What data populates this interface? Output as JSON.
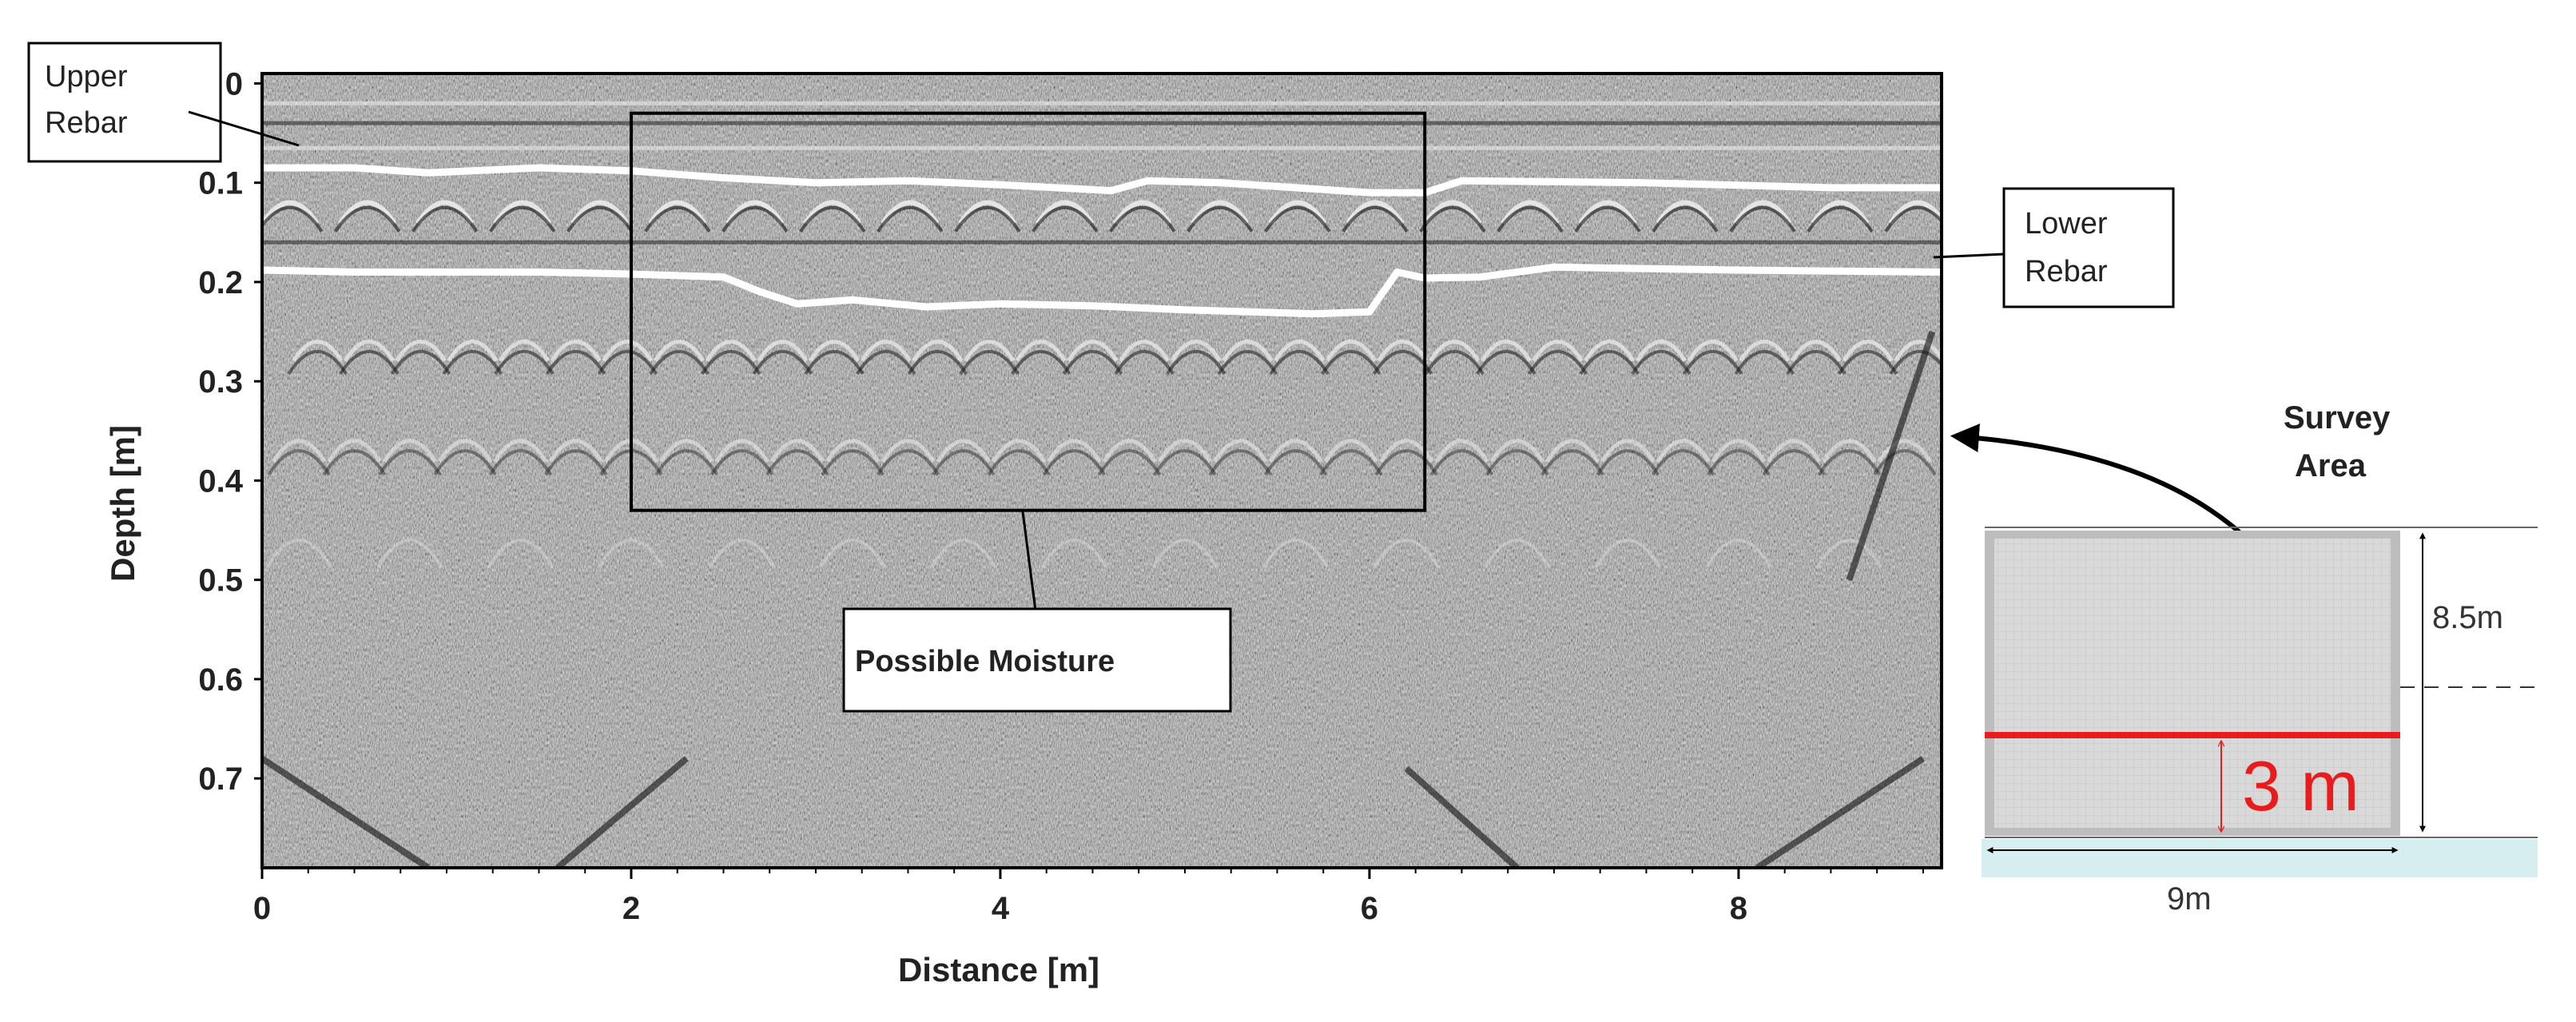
{
  "chart_data": {
    "type": "heatmap",
    "title": "",
    "xlabel": "Distance [m]",
    "ylabel": "Depth [m]",
    "xlim": [
      0,
      9.1
    ],
    "ylim": [
      0.79,
      -0.01
    ],
    "x_ticks": [
      0,
      2,
      4,
      6,
      8
    ],
    "x_tick_labels": [
      "0",
      "2",
      "4",
      "6",
      "8"
    ],
    "y_ticks": [
      0,
      0.1,
      0.2,
      0.3,
      0.4,
      0.5,
      0.6,
      0.7
    ],
    "y_tick_labels": [
      "0",
      "0.1",
      "0.2",
      "0.3",
      "0.4",
      "0.5",
      "0.6",
      "0.7"
    ],
    "background": "grayscale GPR radargram",
    "series": [
      {
        "name": "Upper Rebar",
        "color": "#ffffff",
        "x": [
          0,
          0.5,
          0.9,
          1.5,
          2.0,
          2.5,
          3.0,
          3.5,
          4.0,
          4.6,
          4.8,
          5.2,
          6.0,
          6.3,
          6.5,
          7.5,
          8.5,
          9.1
        ],
        "y": [
          0.085,
          0.085,
          0.09,
          0.085,
          0.088,
          0.095,
          0.1,
          0.098,
          0.102,
          0.108,
          0.098,
          0.1,
          0.11,
          0.11,
          0.098,
          0.1,
          0.105,
          0.105
        ]
      },
      {
        "name": "Lower Rebar",
        "color": "#ffffff",
        "x": [
          0,
          0.5,
          1.0,
          1.5,
          2.0,
          2.5,
          2.7,
          2.9,
          3.2,
          3.6,
          4.0,
          4.5,
          5.0,
          5.7,
          6.0,
          6.15,
          6.3,
          6.6,
          7.0,
          8.0,
          9.1
        ],
        "y": [
          0.188,
          0.19,
          0.19,
          0.19,
          0.192,
          0.195,
          0.21,
          0.222,
          0.218,
          0.225,
          0.222,
          0.224,
          0.228,
          0.232,
          0.23,
          0.19,
          0.196,
          0.195,
          0.185,
          0.188,
          0.19
        ]
      }
    ],
    "annotations": {
      "upper_rebar": "Upper\nRebar",
      "lower_rebar": "Lower\nRebar",
      "moisture_region": {
        "label": "Possible Moisture",
        "x_range": [
          2.0,
          6.3
        ],
        "y_range": [
          0.03,
          0.43
        ]
      }
    }
  },
  "inset": {
    "title_line1": "Survey",
    "title_line2": "Area",
    "height_label": "8.5m",
    "width_label": "9m",
    "line_label": "3 m",
    "line_color": "#e81c1c"
  }
}
